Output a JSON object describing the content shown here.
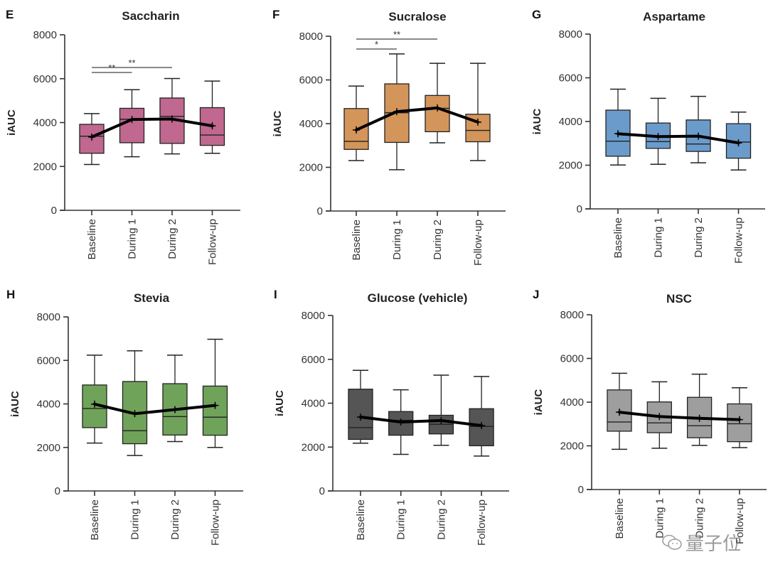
{
  "chart_data": [
    {
      "type": "box",
      "panel": "E",
      "title": "Saccharin",
      "ylabel": "iAUC",
      "xlabel": "",
      "ylim": [
        0,
        8000
      ],
      "yticks": [
        0,
        2000,
        4000,
        6000,
        8000
      ],
      "color": "#c0688f",
      "categories": [
        "Baseline",
        "During 1",
        "During 2",
        "Follow-up"
      ],
      "boxes": [
        {
          "whisker_low": 2090,
          "q1": 2600,
          "median": 3380,
          "q3": 3920,
          "whisker_high": 4410,
          "mean": 3340
        },
        {
          "whisker_low": 2440,
          "q1": 3080,
          "median": 4150,
          "q3": 4650,
          "whisker_high": 5500,
          "mean": 4140
        },
        {
          "whisker_low": 2570,
          "q1": 3050,
          "median": 4280,
          "q3": 5120,
          "whisker_high": 6010,
          "mean": 4160
        },
        {
          "whisker_low": 2600,
          "q1": 2960,
          "median": 3430,
          "q3": 4680,
          "whisker_high": 5890,
          "mean": 3850
        }
      ],
      "significance": [
        {
          "from": "Baseline",
          "to": "During 1",
          "label": "**",
          "level": 1
        },
        {
          "from": "Baseline",
          "to": "During 2",
          "label": "**",
          "level": 2
        }
      ]
    },
    {
      "type": "box",
      "panel": "F",
      "title": "Sucralose",
      "ylabel": "iAUC",
      "xlabel": "",
      "ylim": [
        0,
        8000
      ],
      "yticks": [
        0,
        2000,
        4000,
        6000,
        8000
      ],
      "color": "#d4955a",
      "categories": [
        "Baseline",
        "During 1",
        "During 2",
        "Follow-up"
      ],
      "boxes": [
        {
          "whisker_low": 2310,
          "q1": 2820,
          "median": 3190,
          "q3": 4690,
          "whisker_high": 5720,
          "mean": 3710
        },
        {
          "whisker_low": 1890,
          "q1": 3140,
          "median": 4500,
          "q3": 5820,
          "whisker_high": 7190,
          "mean": 4550
        },
        {
          "whisker_low": 3120,
          "q1": 3630,
          "median": 4700,
          "q3": 5290,
          "whisker_high": 6760,
          "mean": 4720
        },
        {
          "whisker_low": 2310,
          "q1": 3170,
          "median": 3690,
          "q3": 4430,
          "whisker_high": 6760,
          "mean": 4070
        }
      ],
      "significance": [
        {
          "from": "Baseline",
          "to": "During 1",
          "label": "*",
          "level": 1
        },
        {
          "from": "Baseline",
          "to": "During 2",
          "label": "**",
          "level": 2
        }
      ]
    },
    {
      "type": "box",
      "panel": "G",
      "title": "Aspartame",
      "ylabel": "iAUC",
      "xlabel": "",
      "ylim": [
        0,
        8000
      ],
      "yticks": [
        0,
        2000,
        4000,
        6000,
        8000
      ],
      "color": "#6b9bcb",
      "categories": [
        "Baseline",
        "During 1",
        "During 2",
        "Follow-up"
      ],
      "boxes": [
        {
          "whisker_low": 2010,
          "q1": 2410,
          "median": 3100,
          "q3": 4520,
          "whisker_high": 5480,
          "mean": 3440
        },
        {
          "whisker_low": 2040,
          "q1": 2770,
          "median": 3080,
          "q3": 3930,
          "whisker_high": 5060,
          "mean": 3310
        },
        {
          "whisker_low": 2110,
          "q1": 2630,
          "median": 2970,
          "q3": 4070,
          "whisker_high": 5150,
          "mean": 3330
        },
        {
          "whisker_low": 1780,
          "q1": 2320,
          "median": 3060,
          "q3": 3900,
          "whisker_high": 4430,
          "mean": 3020
        }
      ],
      "significance": []
    },
    {
      "type": "box",
      "panel": "H",
      "title": "Stevia",
      "ylabel": "iAUC",
      "xlabel": "",
      "ylim": [
        0,
        8000
      ],
      "yticks": [
        0,
        2000,
        4000,
        6000,
        8000
      ],
      "color": "#6fa35a",
      "categories": [
        "Baseline",
        "During 1",
        "During 2",
        "Follow-up"
      ],
      "boxes": [
        {
          "whisker_low": 2200,
          "q1": 2910,
          "median": 3790,
          "q3": 4870,
          "whisker_high": 6240,
          "mean": 3990
        },
        {
          "whisker_low": 1630,
          "q1": 2170,
          "median": 2770,
          "q3": 5030,
          "whisker_high": 6440,
          "mean": 3550
        },
        {
          "whisker_low": 2270,
          "q1": 2570,
          "median": 3420,
          "q3": 4930,
          "whisker_high": 6240,
          "mean": 3740
        },
        {
          "whisker_low": 2000,
          "q1": 2560,
          "median": 3390,
          "q3": 4820,
          "whisker_high": 6970,
          "mean": 3930
        }
      ],
      "significance": []
    },
    {
      "type": "box",
      "panel": "I",
      "title": "Glucose (vehicle)",
      "ylabel": "iAUC",
      "xlabel": "",
      "ylim": [
        0,
        8000
      ],
      "yticks": [
        0,
        2000,
        4000,
        6000,
        8000
      ],
      "color": "#555555",
      "categories": [
        "Baseline",
        "During 1",
        "During 2",
        "Follow-up"
      ],
      "boxes": [
        {
          "whisker_low": 2180,
          "q1": 2350,
          "median": 2890,
          "q3": 4640,
          "whisker_high": 5500,
          "mean": 3370
        },
        {
          "whisker_low": 1670,
          "q1": 2540,
          "median": 3220,
          "q3": 3620,
          "whisker_high": 4610,
          "mean": 3140
        },
        {
          "whisker_low": 2080,
          "q1": 2600,
          "median": 3040,
          "q3": 3450,
          "whisker_high": 5280,
          "mean": 3210
        },
        {
          "whisker_low": 1590,
          "q1": 2060,
          "median": 2940,
          "q3": 3750,
          "whisker_high": 5220,
          "mean": 2980
        }
      ],
      "significance": []
    },
    {
      "type": "box",
      "panel": "J",
      "title": "NSC",
      "ylabel": "iAUC",
      "xlabel": "",
      "ylim": [
        0,
        8000
      ],
      "yticks": [
        0,
        2000,
        4000,
        6000,
        8000
      ],
      "color": "#9e9e9e",
      "categories": [
        "Baseline",
        "During 1",
        "During 2",
        "Follow-up"
      ],
      "boxes": [
        {
          "whisker_low": 1840,
          "q1": 2670,
          "median": 3090,
          "q3": 4560,
          "whisker_high": 5320,
          "mean": 3540
        },
        {
          "whisker_low": 1890,
          "q1": 2600,
          "median": 3050,
          "q3": 4010,
          "whisker_high": 4930,
          "mean": 3340
        },
        {
          "whisker_low": 2020,
          "q1": 2370,
          "median": 2920,
          "q3": 4220,
          "whisker_high": 5280,
          "mean": 3260
        },
        {
          "whisker_low": 1920,
          "q1": 2190,
          "median": 3010,
          "q3": 3920,
          "whisker_high": 4660,
          "mean": 3200
        }
      ],
      "significance": []
    }
  ],
  "watermark": {
    "icon": "wechat-icon",
    "text": "量子位"
  }
}
